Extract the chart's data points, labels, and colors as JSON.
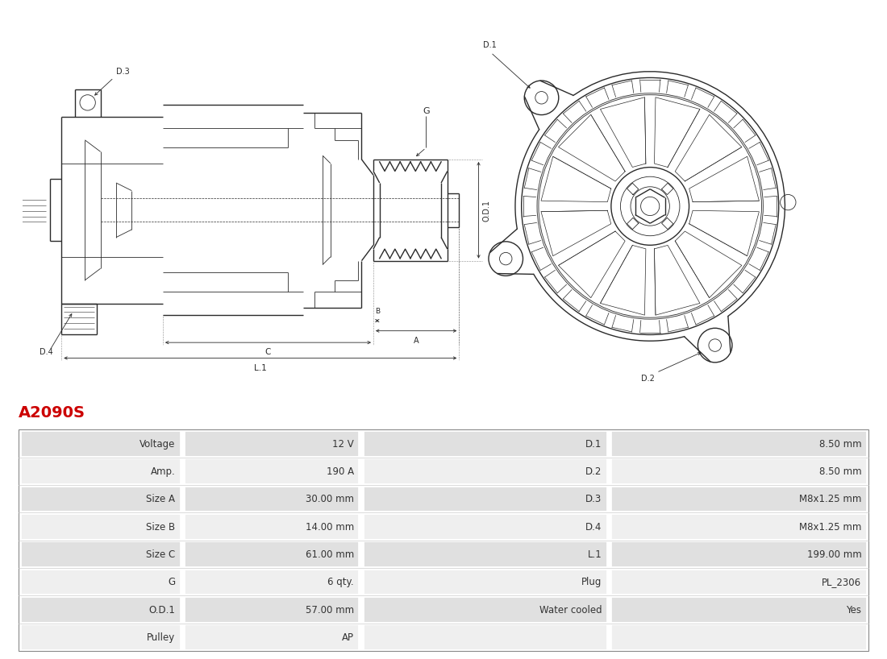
{
  "title": "A2090S",
  "title_color": "#cc0000",
  "title_fontsize": 14,
  "bg_color": "#ffffff",
  "drawing_line_color": "#2a2a2a",
  "table_rows": [
    [
      "Voltage",
      "12 V",
      "D.1",
      "8.50 mm"
    ],
    [
      "Amp.",
      "190 A",
      "D.2",
      "8.50 mm"
    ],
    [
      "Size A",
      "30.00 mm",
      "D.3",
      "M8x1.25 mm"
    ],
    [
      "Size B",
      "14.00 mm",
      "D.4",
      "M8x1.25 mm"
    ],
    [
      "Size C",
      "61.00 mm",
      "L.1",
      "199.00 mm"
    ],
    [
      "G",
      "6 qty.",
      "Plug",
      "PL_2306"
    ],
    [
      "O.D.1",
      "57.00 mm",
      "Water cooled",
      "Yes"
    ],
    [
      "Pulley",
      "AP",
      "",
      ""
    ]
  ],
  "table_row_bg_odd": "#e0e0e0",
  "table_row_bg_even": "#efefef",
  "table_border_color": "#ffffff",
  "table_text_color": "#333333"
}
